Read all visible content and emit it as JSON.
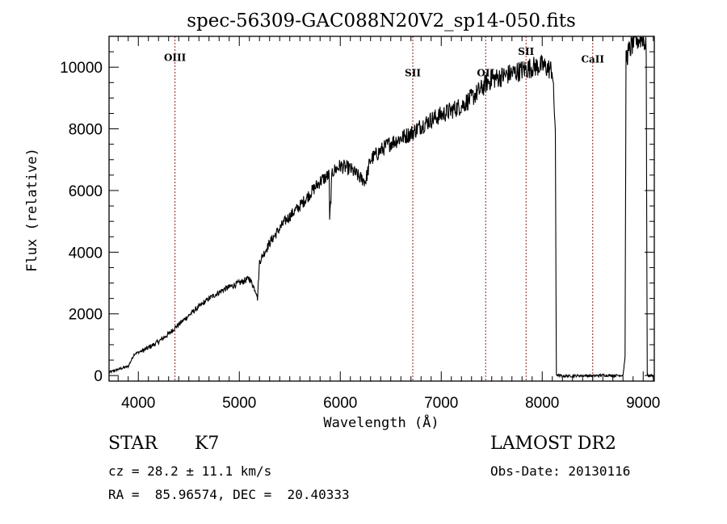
{
  "chart_data": {
    "type": "line",
    "title": "spec-56309-GAC088N20V2_sp14-050.fits",
    "xlabel": "Wavelength (Å)",
    "ylabel": "Flux (relative)",
    "xlim": [
      3710,
      9110
    ],
    "ylim": [
      -180,
      11000
    ],
    "x_ticks": [
      4000,
      5000,
      6000,
      7000,
      8000,
      9000
    ],
    "x_tick_labels": [
      "4000",
      "5000",
      "6000",
      "7000",
      "8000",
      "9000"
    ],
    "y_ticks": [
      0,
      2000,
      4000,
      6000,
      8000,
      10000
    ],
    "y_tick_labels": [
      "0",
      "2000",
      "4000",
      "6000",
      "8000",
      "10000"
    ],
    "grid": false,
    "series": [
      {
        "name": "spectrum",
        "color": "#000000",
        "x": [
          3710,
          3800,
          3900,
          3960,
          4000,
          4100,
          4200,
          4300,
          4363,
          4450,
          4550,
          4700,
          4850,
          5000,
          5100,
          5170,
          5180,
          5200,
          5300,
          5450,
          5600,
          5700,
          5800,
          5890,
          5895,
          5920,
          6000,
          6100,
          6200,
          6250,
          6300,
          6400,
          6500,
          6600,
          6700,
          6800,
          6900,
          7000,
          7100,
          7200,
          7300,
          7400,
          7450,
          7500,
          7600,
          7700,
          7800,
          7900,
          8000,
          8100,
          8130,
          8140,
          8200,
          8300,
          8400,
          8500,
          8600,
          8700,
          8800,
          8820,
          8830,
          8900,
          9000,
          9030,
          9040,
          9100
        ],
        "y": [
          100,
          200,
          300,
          700,
          750,
          900,
          1100,
          1350,
          1550,
          1800,
          2100,
          2500,
          2800,
          3000,
          3150,
          2700,
          2500,
          3700,
          4300,
          5000,
          5500,
          5900,
          6300,
          6500,
          5000,
          6600,
          6800,
          6700,
          6400,
          6300,
          7000,
          7300,
          7550,
          7700,
          7850,
          8100,
          8300,
          8450,
          8600,
          8750,
          9000,
          9300,
          9500,
          9600,
          9700,
          9800,
          9900,
          10000,
          10050,
          9900,
          8000,
          30,
          -20,
          -10,
          0,
          -10,
          10,
          0,
          10,
          600,
          10300,
          10800,
          11000,
          10600,
          0,
          0
        ]
      }
    ],
    "annotations": [
      {
        "label": "OIII",
        "x": 4363,
        "label_y": 10200,
        "color": "#8b2020"
      },
      {
        "label": "SII",
        "x": 6718,
        "label_y": 9700,
        "color": "#8b2020"
      },
      {
        "label": "OII",
        "x": 7440,
        "label_y": 9700,
        "color": "#8b2020"
      },
      {
        "label": "SII",
        "x": 7840,
        "label_y": 10400,
        "color": "#8b2020"
      },
      {
        "label": "CaII",
        "x": 8500,
        "label_y": 10150,
        "color": "#8b2020"
      }
    ]
  },
  "info": {
    "class": "STAR",
    "subclass": "K7",
    "cz": "cz = 28.2 ± 11.1 km/s",
    "coords": "RA =  85.96574, DEC =  20.40333",
    "survey": "LAMOST DR2",
    "obs_date": "Obs-Date: 20130116"
  }
}
